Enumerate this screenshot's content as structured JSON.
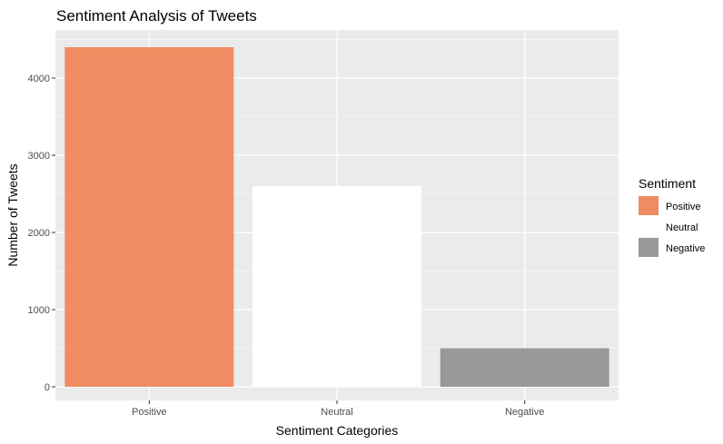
{
  "chart_data": {
    "type": "bar",
    "title": "Sentiment Analysis of Tweets",
    "xlabel": "Sentiment Categories",
    "ylabel": "Number of Tweets",
    "categories": [
      "Positive",
      "Neutral",
      "Negative"
    ],
    "values": [
      4400,
      2600,
      500
    ],
    "ylim": [
      0,
      4650
    ],
    "yticks": [
      0,
      1000,
      2000,
      3000,
      4000
    ],
    "grid": true,
    "legend": {
      "title": "Sentiment",
      "position": "right",
      "entries": [
        "Positive",
        "Neutral",
        "Negative"
      ]
    },
    "colors": {
      "Positive": "#F08C62",
      "Neutral": "#FFFFFF",
      "Negative": "#999999",
      "panel": "#EBEBEB",
      "grid": "#FFFFFF"
    }
  }
}
